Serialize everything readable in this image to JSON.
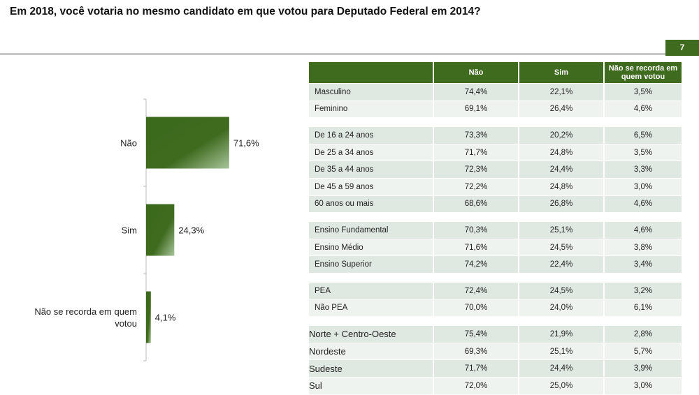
{
  "title": "Em 2018, você votaria no mesmo candidato em que votou para Deputado Federal em 2014?",
  "page_number": "7",
  "colors": {
    "green": "#3f6b1f"
  },
  "chart_data": {
    "type": "bar",
    "orientation": "horizontal",
    "categories": [
      "Não",
      "Sim",
      "Não se recorda em quem votou"
    ],
    "category_lines": [
      [
        "Não"
      ],
      [
        "Sim"
      ],
      [
        "Não se recorda em quem",
        "votou"
      ]
    ],
    "values": [
      71.6,
      24.3,
      4.1
    ],
    "labels": [
      "71,6%",
      "24,3%",
      "4,1%"
    ],
    "xlim": [
      0,
      100
    ]
  },
  "table": {
    "headers": [
      "",
      "Não",
      "Sim",
      "Não se recorda em quem votou"
    ],
    "groups": [
      [
        [
          "Masculino",
          "74,4%",
          "22,1%",
          "3,5%"
        ],
        [
          "Feminino",
          "69,1%",
          "26,4%",
          "4,6%"
        ]
      ],
      [
        [
          "De 16 a 24 anos",
          "73,3%",
          "20,2%",
          "6,5%"
        ],
        [
          "De 25 a 34 anos",
          "71,7%",
          "24,8%",
          "3,5%"
        ],
        [
          "De 35 a 44 anos",
          "72,3%",
          "24,4%",
          "3,3%"
        ],
        [
          "De 45 a 59 anos",
          "72,2%",
          "24,8%",
          "3,0%"
        ],
        [
          "60 anos ou mais",
          "68,6%",
          "26,8%",
          "4,6%"
        ]
      ],
      [
        [
          "Ensino Fundamental",
          "70,3%",
          "25,1%",
          "4,6%"
        ],
        [
          "Ensino Médio",
          "71,6%",
          "24,5%",
          "3,8%"
        ],
        [
          "Ensino Superior",
          "74,2%",
          "22,4%",
          "3,4%"
        ]
      ],
      [
        [
          "PEA",
          "72,4%",
          "24,5%",
          "3,2%"
        ],
        [
          "Não PEA",
          "70,0%",
          "24,0%",
          "6,1%"
        ]
      ],
      [
        [
          "Norte + Centro-Oeste",
          "75,4%",
          "21,9%",
          "2,8%"
        ],
        [
          "Nordeste",
          "69,3%",
          "25,1%",
          "5,7%"
        ],
        [
          "Sudeste",
          "71,7%",
          "24,4%",
          "3,9%"
        ],
        [
          "Sul",
          "72,0%",
          "25,0%",
          "3,0%"
        ]
      ]
    ]
  }
}
